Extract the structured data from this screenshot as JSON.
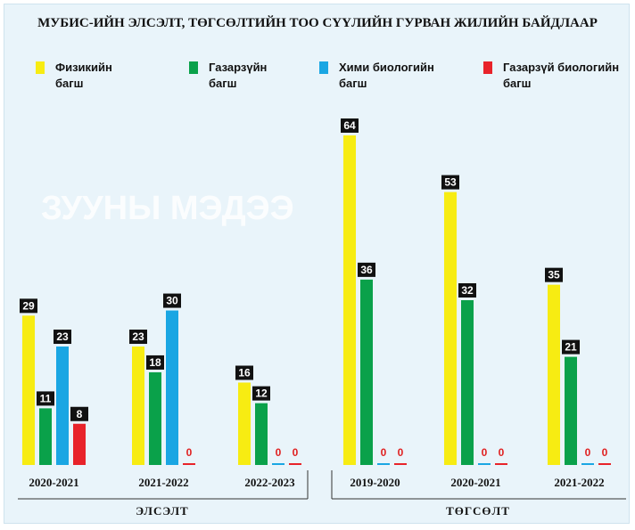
{
  "chart_data": {
    "type": "bar",
    "title": "МУБИС-ИЙН ЭЛСЭЛТ, ТӨГСӨЛТИЙН ТОО СҮҮЛИЙН ГУРВАН ЖИЛИЙН БАЙДЛААР",
    "watermark": "ЗУУНЫ МЭДЭЭ",
    "series": [
      {
        "name": "Физикийн багш",
        "color": "#f7ec12"
      },
      {
        "name": "Газарзүйн багш",
        "color": "#0aa14a"
      },
      {
        "name": "Хими биологийн багш",
        "color": "#1aa6e3"
      },
      {
        "name": "Газарзүй биологийн багш",
        "color": "#e8232a"
      }
    ],
    "groups": [
      {
        "label": "ЭЛСЭЛТ",
        "categories": [
          {
            "label": "2020-2021",
            "values": [
              29,
              11,
              23,
              8
            ]
          },
          {
            "label": "2021-2022",
            "values": [
              23,
              18,
              30,
              0
            ]
          },
          {
            "label": "2022-2023",
            "values": [
              16,
              12,
              0,
              0
            ]
          }
        ]
      },
      {
        "label": "ТӨГСӨЛТ",
        "categories": [
          {
            "label": "2019-2020",
            "values": [
              64,
              36,
              0,
              0
            ]
          },
          {
            "label": "2020-2021",
            "values": [
              53,
              32,
              0,
              0
            ]
          },
          {
            "label": "2021-2022",
            "values": [
              35,
              21,
              0,
              0
            ]
          }
        ]
      }
    ],
    "ylim": [
      0,
      64
    ]
  }
}
